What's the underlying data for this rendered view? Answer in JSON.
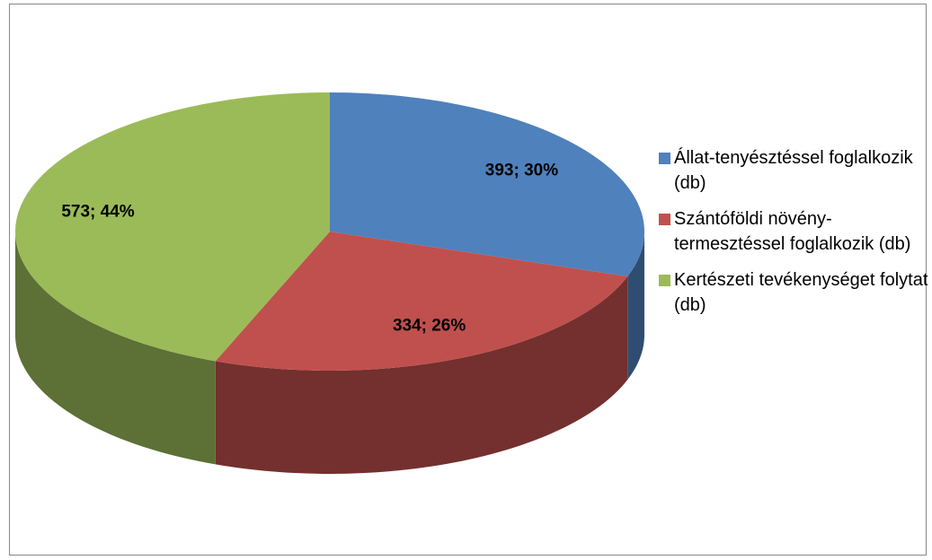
{
  "chart_data": {
    "type": "pie3d",
    "categories": [
      "Állat-tenyésztéssel foglalkozik (db)",
      "Szántóföldi növény-termesztéssel foglalkozik (db)",
      "Kertészeti tevékenységet folytat (db)"
    ],
    "values": [
      393,
      334,
      573
    ],
    "value_labels": [
      "393; 30%",
      "334; 26%",
      "573; 44%"
    ],
    "colors": [
      "#4f81bd",
      "#c0504d",
      "#9bbb59"
    ],
    "legend": "right"
  }
}
